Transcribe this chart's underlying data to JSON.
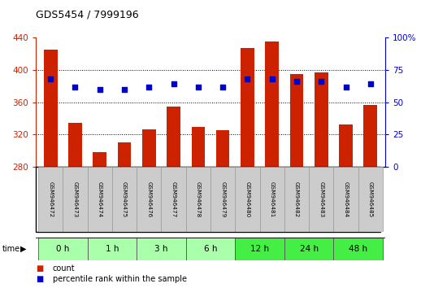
{
  "title": "GDS5454 / 7999196",
  "samples": [
    "GSM946472",
    "GSM946473",
    "GSM946474",
    "GSM946475",
    "GSM946476",
    "GSM946477",
    "GSM946478",
    "GSM946479",
    "GSM946480",
    "GSM946481",
    "GSM946482",
    "GSM946483",
    "GSM946484",
    "GSM946485"
  ],
  "counts": [
    425,
    335,
    298,
    310,
    327,
    355,
    330,
    326,
    427,
    435,
    395,
    397,
    333,
    357
  ],
  "percentile_ranks": [
    68,
    62,
    60,
    60,
    62,
    64,
    62,
    62,
    68,
    68,
    66,
    66,
    62,
    64
  ],
  "ylim_left": [
    280,
    440
  ],
  "ylim_right": [
    0,
    100
  ],
  "yticks_left": [
    280,
    320,
    360,
    400,
    440
  ],
  "yticks_right": [
    0,
    25,
    50,
    75,
    100
  ],
  "time_groups": [
    {
      "label": "0 h",
      "indices": [
        0,
        1
      ],
      "color": "#aaffaa"
    },
    {
      "label": "1 h",
      "indices": [
        2,
        3
      ],
      "color": "#aaffaa"
    },
    {
      "label": "3 h",
      "indices": [
        4,
        5
      ],
      "color": "#aaffaa"
    },
    {
      "label": "6 h",
      "indices": [
        6,
        7
      ],
      "color": "#aaffaa"
    },
    {
      "label": "12 h",
      "indices": [
        8,
        9
      ],
      "color": "#44ee44"
    },
    {
      "label": "24 h",
      "indices": [
        10,
        11
      ],
      "color": "#44ee44"
    },
    {
      "label": "48 h",
      "indices": [
        12,
        13
      ],
      "color": "#44ee44"
    }
  ],
  "bar_color": "#cc2200",
  "dot_color": "#0000cc",
  "bg_color": "#ffffff",
  "sample_bg_color": "#cccccc",
  "legend_count_label": "count",
  "legend_pct_label": "percentile rank within the sample",
  "left_axis_color": "#cc2200",
  "right_axis_color": "#0000cc",
  "grid_yticks": [
    320,
    360,
    400
  ]
}
